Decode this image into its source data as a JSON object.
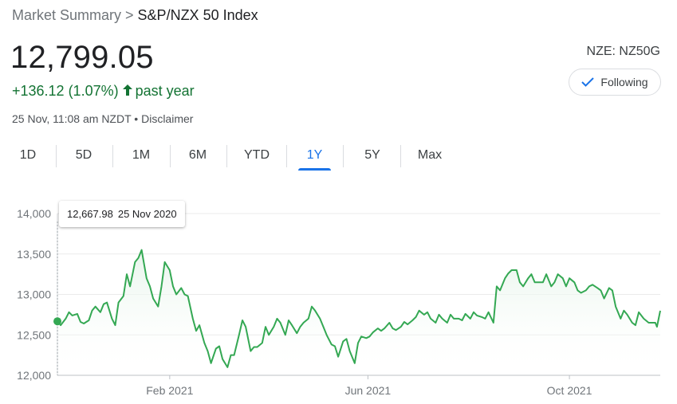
{
  "breadcrumb": {
    "parent": "Market Summary",
    "separator": ">",
    "current": "S&P/NZX 50 Index"
  },
  "quote": {
    "price": "12,799.05",
    "change": "+136.12 (1.07%)",
    "period": "past year",
    "timestamp": "25 Nov, 11:08 am NZDT",
    "bullet": "•",
    "disclaimer": "Disclaimer",
    "ticker": "NZE: NZ50G"
  },
  "follow_button": {
    "label": "Following",
    "icon": "check-icon"
  },
  "range_tabs": [
    {
      "label": "1D",
      "active": false
    },
    {
      "label": "5D",
      "active": false
    },
    {
      "label": "1M",
      "active": false
    },
    {
      "label": "6M",
      "active": false
    },
    {
      "label": "YTD",
      "active": false
    },
    {
      "label": "1Y",
      "active": true
    },
    {
      "label": "5Y",
      "active": false
    },
    {
      "label": "Max",
      "active": false
    }
  ],
  "tooltip": {
    "value": "12,667.98",
    "date": "25 Nov 2020"
  },
  "colors": {
    "line": "#34a853",
    "fill": "#e6f4ea",
    "accent": "#1a73e8",
    "positive": "#137333",
    "grid": "#ebebeb"
  },
  "chart_data": {
    "type": "line",
    "title": "",
    "xlabel": "",
    "ylabel": "",
    "ylim": [
      12000,
      14000
    ],
    "yticks": [
      12000,
      12500,
      13000,
      13500,
      14000
    ],
    "ytick_labels": [
      "12,000",
      "12,500",
      "13,000",
      "13,500",
      "14,000"
    ],
    "xticks": [
      {
        "date": "2021-02-01",
        "label": "Feb 2021"
      },
      {
        "date": "2021-06-01",
        "label": "Jun 2021"
      },
      {
        "date": "2021-10-01",
        "label": "Oct 2021"
      }
    ],
    "xlim": [
      "2020-11-25",
      "2021-11-25"
    ],
    "grid": true,
    "series": [
      {
        "values": [
          [
            "2020-11-25",
            12668
          ],
          [
            "2020-11-27",
            12620
          ],
          [
            "2020-11-30",
            12700
          ],
          [
            "2020-12-02",
            12780
          ],
          [
            "2020-12-04",
            12740
          ],
          [
            "2020-12-07",
            12760
          ],
          [
            "2020-12-09",
            12660
          ],
          [
            "2020-12-11",
            12640
          ],
          [
            "2020-12-14",
            12680
          ],
          [
            "2020-12-16",
            12800
          ],
          [
            "2020-12-18",
            12850
          ],
          [
            "2020-12-21",
            12780
          ],
          [
            "2020-12-23",
            12880
          ],
          [
            "2020-12-25",
            12900
          ],
          [
            "2020-12-28",
            12700
          ],
          [
            "2020-12-30",
            12620
          ],
          [
            "2021-01-01",
            12900
          ],
          [
            "2021-01-04",
            12980
          ],
          [
            "2021-01-06",
            13250
          ],
          [
            "2021-01-08",
            13100
          ],
          [
            "2021-01-11",
            13400
          ],
          [
            "2021-01-13",
            13450
          ],
          [
            "2021-01-15",
            13550
          ],
          [
            "2021-01-18",
            13200
          ],
          [
            "2021-01-20",
            13100
          ],
          [
            "2021-01-22",
            12950
          ],
          [
            "2021-01-25",
            12850
          ],
          [
            "2021-01-27",
            13100
          ],
          [
            "2021-01-29",
            13400
          ],
          [
            "2021-02-01",
            13300
          ],
          [
            "2021-02-03",
            13100
          ],
          [
            "2021-02-05",
            13000
          ],
          [
            "2021-02-08",
            13080
          ],
          [
            "2021-02-10",
            13000
          ],
          [
            "2021-02-12",
            12980
          ],
          [
            "2021-02-15",
            12700
          ],
          [
            "2021-02-17",
            12550
          ],
          [
            "2021-02-19",
            12620
          ],
          [
            "2021-02-22",
            12400
          ],
          [
            "2021-02-24",
            12300
          ],
          [
            "2021-02-26",
            12150
          ],
          [
            "2021-03-01",
            12330
          ],
          [
            "2021-03-03",
            12360
          ],
          [
            "2021-03-05",
            12200
          ],
          [
            "2021-03-08",
            12100
          ],
          [
            "2021-03-10",
            12250
          ],
          [
            "2021-03-12",
            12250
          ],
          [
            "2021-03-15",
            12500
          ],
          [
            "2021-03-17",
            12680
          ],
          [
            "2021-03-19",
            12600
          ],
          [
            "2021-03-22",
            12300
          ],
          [
            "2021-03-24",
            12350
          ],
          [
            "2021-03-26",
            12350
          ],
          [
            "2021-03-29",
            12400
          ],
          [
            "2021-03-31",
            12600
          ],
          [
            "2021-04-02",
            12500
          ],
          [
            "2021-04-05",
            12600
          ],
          [
            "2021-04-07",
            12700
          ],
          [
            "2021-04-09",
            12650
          ],
          [
            "2021-04-12",
            12500
          ],
          [
            "2021-04-14",
            12680
          ],
          [
            "2021-04-16",
            12620
          ],
          [
            "2021-04-19",
            12520
          ],
          [
            "2021-04-21",
            12600
          ],
          [
            "2021-04-23",
            12650
          ],
          [
            "2021-04-26",
            12700
          ],
          [
            "2021-04-28",
            12850
          ],
          [
            "2021-04-30",
            12800
          ],
          [
            "2021-05-03",
            12700
          ],
          [
            "2021-05-05",
            12600
          ],
          [
            "2021-05-07",
            12500
          ],
          [
            "2021-05-10",
            12380
          ],
          [
            "2021-05-12",
            12360
          ],
          [
            "2021-05-14",
            12230
          ],
          [
            "2021-05-17",
            12420
          ],
          [
            "2021-05-19",
            12450
          ],
          [
            "2021-05-21",
            12300
          ],
          [
            "2021-05-24",
            12150
          ],
          [
            "2021-05-26",
            12400
          ],
          [
            "2021-05-28",
            12480
          ],
          [
            "2021-05-31",
            12460
          ],
          [
            "2021-06-02",
            12480
          ],
          [
            "2021-06-04",
            12530
          ],
          [
            "2021-06-07",
            12580
          ],
          [
            "2021-06-09",
            12550
          ],
          [
            "2021-06-11",
            12580
          ],
          [
            "2021-06-14",
            12650
          ],
          [
            "2021-06-16",
            12580
          ],
          [
            "2021-06-18",
            12560
          ],
          [
            "2021-06-21",
            12600
          ],
          [
            "2021-06-23",
            12660
          ],
          [
            "2021-06-25",
            12630
          ],
          [
            "2021-06-28",
            12680
          ],
          [
            "2021-06-30",
            12720
          ],
          [
            "2021-07-02",
            12800
          ],
          [
            "2021-07-05",
            12750
          ],
          [
            "2021-07-07",
            12780
          ],
          [
            "2021-07-09",
            12700
          ],
          [
            "2021-07-12",
            12650
          ],
          [
            "2021-07-14",
            12750
          ],
          [
            "2021-07-16",
            12700
          ],
          [
            "2021-07-19",
            12650
          ],
          [
            "2021-07-21",
            12750
          ],
          [
            "2021-07-23",
            12700
          ],
          [
            "2021-07-26",
            12700
          ],
          [
            "2021-07-28",
            12680
          ],
          [
            "2021-07-30",
            12760
          ],
          [
            "2021-08-02",
            12700
          ],
          [
            "2021-08-04",
            12780
          ],
          [
            "2021-08-06",
            12740
          ],
          [
            "2021-08-09",
            12720
          ],
          [
            "2021-08-11",
            12700
          ],
          [
            "2021-08-13",
            12780
          ],
          [
            "2021-08-16",
            12650
          ],
          [
            "2021-08-18",
            13100
          ],
          [
            "2021-08-20",
            13050
          ],
          [
            "2021-08-23",
            13200
          ],
          [
            "2021-08-25",
            13260
          ],
          [
            "2021-08-27",
            13300
          ],
          [
            "2021-08-30",
            13300
          ],
          [
            "2021-09-01",
            13150
          ],
          [
            "2021-09-03",
            13100
          ],
          [
            "2021-09-06",
            13200
          ],
          [
            "2021-09-08",
            13250
          ],
          [
            "2021-09-10",
            13150
          ],
          [
            "2021-09-13",
            13150
          ],
          [
            "2021-09-15",
            13150
          ],
          [
            "2021-09-17",
            13250
          ],
          [
            "2021-09-20",
            13100
          ],
          [
            "2021-09-22",
            13150
          ],
          [
            "2021-09-24",
            13250
          ],
          [
            "2021-09-27",
            13200
          ],
          [
            "2021-09-29",
            13100
          ],
          [
            "2021-10-01",
            13200
          ],
          [
            "2021-10-04",
            13150
          ],
          [
            "2021-10-06",
            13050
          ],
          [
            "2021-10-08",
            13020
          ],
          [
            "2021-10-11",
            13050
          ],
          [
            "2021-10-13",
            13100
          ],
          [
            "2021-10-15",
            13120
          ],
          [
            "2021-10-18",
            13080
          ],
          [
            "2021-10-20",
            13050
          ],
          [
            "2021-10-22",
            12950
          ],
          [
            "2021-10-25",
            13080
          ],
          [
            "2021-10-27",
            13050
          ],
          [
            "2021-10-29",
            12850
          ],
          [
            "2021-11-01",
            12700
          ],
          [
            "2021-11-03",
            12800
          ],
          [
            "2021-11-05",
            12750
          ],
          [
            "2021-11-08",
            12650
          ],
          [
            "2021-11-10",
            12620
          ],
          [
            "2021-11-12",
            12780
          ],
          [
            "2021-11-15",
            12700
          ],
          [
            "2021-11-18",
            12650
          ],
          [
            "2021-11-22",
            12650
          ],
          [
            "2021-11-23",
            12600
          ],
          [
            "2021-11-25",
            12799
          ]
        ]
      }
    ]
  }
}
